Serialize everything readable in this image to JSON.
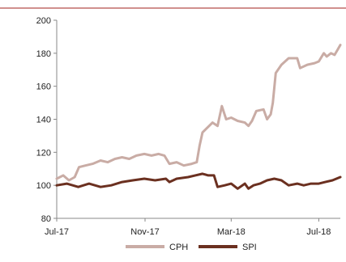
{
  "chart_data": {
    "type": "line",
    "title": "",
    "xlabel": "",
    "ylabel": "",
    "ylim": [
      80,
      200
    ],
    "yticks": [
      80,
      100,
      120,
      140,
      160,
      180,
      200
    ],
    "xlim": [
      "2017-07-01",
      "2018-07-31"
    ],
    "xticks": [
      {
        "date": "2017-07-01",
        "label": "Jul-17"
      },
      {
        "date": "2017-11-01",
        "label": "Nov-17"
      },
      {
        "date": "2018-03-01",
        "label": "Mar-18"
      },
      {
        "date": "2018-07-01",
        "label": "Jul-18"
      }
    ],
    "grid": false,
    "legend_position": "bottom",
    "series": [
      {
        "name": "CPH",
        "color": "#c9aca5",
        "points": [
          [
            "2017-07-01",
            104
          ],
          [
            "2017-07-10",
            106
          ],
          [
            "2017-07-18",
            103
          ],
          [
            "2017-07-26",
            105
          ],
          [
            "2017-08-01",
            111
          ],
          [
            "2017-08-10",
            112
          ],
          [
            "2017-08-20",
            113
          ],
          [
            "2017-08-31",
            115
          ],
          [
            "2017-09-10",
            114
          ],
          [
            "2017-09-20",
            116
          ],
          [
            "2017-09-30",
            117
          ],
          [
            "2017-10-10",
            116
          ],
          [
            "2017-10-20",
            118
          ],
          [
            "2017-10-31",
            119
          ],
          [
            "2017-11-10",
            118
          ],
          [
            "2017-11-20",
            119
          ],
          [
            "2017-11-28",
            118
          ],
          [
            "2017-12-05",
            113
          ],
          [
            "2017-12-15",
            114
          ],
          [
            "2017-12-25",
            112
          ],
          [
            "2018-01-05",
            113
          ],
          [
            "2018-01-12",
            114
          ],
          [
            "2018-01-16",
            124
          ],
          [
            "2018-01-20",
            132
          ],
          [
            "2018-01-27",
            135
          ],
          [
            "2018-02-03",
            138
          ],
          [
            "2018-02-10",
            136
          ],
          [
            "2018-02-16",
            148
          ],
          [
            "2018-02-22",
            140
          ],
          [
            "2018-03-01",
            141
          ],
          [
            "2018-03-10",
            139
          ],
          [
            "2018-03-20",
            138
          ],
          [
            "2018-03-25",
            136
          ],
          [
            "2018-03-30",
            139
          ],
          [
            "2018-04-05",
            145
          ],
          [
            "2018-04-15",
            146
          ],
          [
            "2018-04-20",
            140
          ],
          [
            "2018-04-25",
            143
          ],
          [
            "2018-04-28",
            150
          ],
          [
            "2018-05-02",
            168
          ],
          [
            "2018-05-10",
            173
          ],
          [
            "2018-05-20",
            177
          ],
          [
            "2018-06-01",
            177
          ],
          [
            "2018-06-05",
            171
          ],
          [
            "2018-06-15",
            173
          ],
          [
            "2018-06-25",
            174
          ],
          [
            "2018-07-01",
            175
          ],
          [
            "2018-07-08",
            180
          ],
          [
            "2018-07-12",
            178
          ],
          [
            "2018-07-18",
            180
          ],
          [
            "2018-07-23",
            179
          ],
          [
            "2018-07-27",
            182
          ],
          [
            "2018-07-31",
            185
          ]
        ]
      },
      {
        "name": "SPI",
        "color": "#6b3020",
        "points": [
          [
            "2017-07-01",
            100
          ],
          [
            "2017-07-15",
            101
          ],
          [
            "2017-07-31",
            99
          ],
          [
            "2017-08-15",
            101
          ],
          [
            "2017-08-31",
            99
          ],
          [
            "2017-09-15",
            100
          ],
          [
            "2017-09-30",
            102
          ],
          [
            "2017-10-15",
            103
          ],
          [
            "2017-10-31",
            104
          ],
          [
            "2017-11-15",
            103
          ],
          [
            "2017-11-30",
            104
          ],
          [
            "2017-12-05",
            102
          ],
          [
            "2017-12-15",
            104
          ],
          [
            "2017-12-31",
            105
          ],
          [
            "2018-01-10",
            106
          ],
          [
            "2018-01-20",
            107
          ],
          [
            "2018-01-28",
            106
          ],
          [
            "2018-02-05",
            106
          ],
          [
            "2018-02-10",
            99
          ],
          [
            "2018-02-20",
            100
          ],
          [
            "2018-03-01",
            101
          ],
          [
            "2018-03-10",
            98
          ],
          [
            "2018-03-20",
            101
          ],
          [
            "2018-03-25",
            98
          ],
          [
            "2018-04-01",
            100
          ],
          [
            "2018-04-10",
            101
          ],
          [
            "2018-04-20",
            103
          ],
          [
            "2018-04-30",
            104
          ],
          [
            "2018-05-10",
            103
          ],
          [
            "2018-05-20",
            100
          ],
          [
            "2018-06-01",
            101
          ],
          [
            "2018-06-10",
            100
          ],
          [
            "2018-06-20",
            101
          ],
          [
            "2018-07-01",
            101
          ],
          [
            "2018-07-10",
            102
          ],
          [
            "2018-07-20",
            103
          ],
          [
            "2018-07-31",
            105
          ]
        ]
      }
    ]
  }
}
